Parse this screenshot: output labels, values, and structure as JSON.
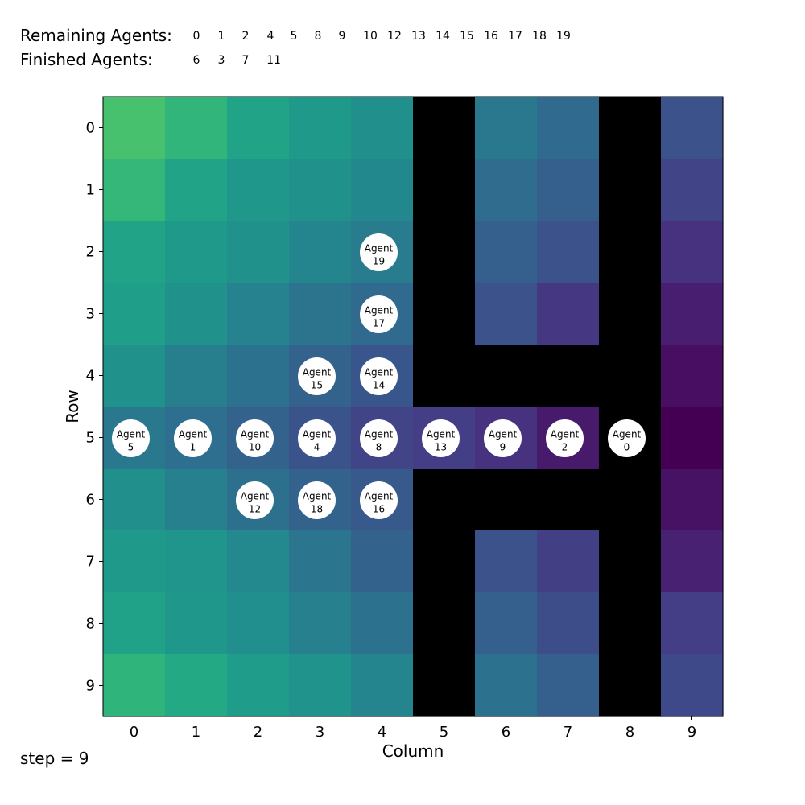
{
  "header": {
    "remaining_label": "Remaining Agents:",
    "finished_label": "Finished Agents:",
    "remaining": [
      "0",
      "1",
      "2",
      "4",
      "5",
      "8",
      "9",
      "10",
      "12",
      "13",
      "14",
      "15",
      "16",
      "17",
      "18",
      "19"
    ],
    "finished": [
      "6",
      "3",
      "7",
      "11"
    ]
  },
  "axes": {
    "xlabel": "Column",
    "ylabel": "Row",
    "xticks": [
      "0",
      "1",
      "2",
      "3",
      "4",
      "5",
      "6",
      "7",
      "8",
      "9"
    ],
    "yticks": [
      "0",
      "1",
      "2",
      "3",
      "4",
      "5",
      "6",
      "7",
      "8",
      "9"
    ]
  },
  "grid": {
    "rows": 10,
    "cols": 10,
    "wall_color": "#000000",
    "colormap": "viridis",
    "wall_cells": [
      [
        0,
        5
      ],
      [
        1,
        5
      ],
      [
        2,
        5
      ],
      [
        3,
        5
      ],
      [
        4,
        5
      ],
      [
        6,
        5
      ],
      [
        7,
        5
      ],
      [
        8,
        5
      ],
      [
        9,
        5
      ],
      [
        0,
        8
      ],
      [
        1,
        8
      ],
      [
        2,
        8
      ],
      [
        3,
        8
      ],
      [
        4,
        8
      ],
      [
        6,
        8
      ],
      [
        7,
        8
      ],
      [
        8,
        8
      ],
      [
        9,
        8
      ],
      [
        4,
        6
      ],
      [
        4,
        7
      ],
      [
        6,
        6
      ],
      [
        6,
        7
      ]
    ],
    "cell_colors": [
      [
        "#48c16e",
        "#31b57b",
        "#20a386",
        "#1f998a",
        "#21908d",
        null,
        "#2a788e",
        "#306a8e",
        null,
        "#3b528b"
      ],
      [
        "#35b779",
        "#20a386",
        "#1f978b",
        "#21918c",
        "#23888e",
        null,
        "#2f6c8e",
        "#355f8d",
        null,
        "#414487"
      ],
      [
        "#20a386",
        "#1f998a",
        "#21918c",
        "#25858e",
        "#297b8e",
        null,
        "#355f8d",
        "#3b528b",
        null,
        "#46327e"
      ],
      [
        "#1f9e89",
        "#21918c",
        "#26828e",
        "#2c738e",
        "#306a8e",
        null,
        "#3b528b",
        "#453781",
        null,
        "#481f70"
      ],
      [
        "#21918c",
        "#277f8e",
        "#2c728e",
        "#33638d",
        "#39568c",
        null,
        null,
        null,
        null,
        "#470e61"
      ],
      [
        "#2a788e",
        "#2e6e8e",
        "#33638d",
        "#3a538b",
        "#414487",
        "#433e85",
        "#46327e",
        "#481a6c",
        null,
        "#440154"
      ],
      [
        "#21908d",
        "#27808e",
        "#2d708e",
        "#33638d",
        "#38598c",
        null,
        null,
        null,
        null,
        "#471164"
      ],
      [
        "#1f9a8a",
        "#1f958b",
        "#23898e",
        "#2b758e",
        "#33638d",
        null,
        "#3b528b",
        "#423f85",
        null,
        "#482173"
      ],
      [
        "#1fa287",
        "#1f988b",
        "#218f8d",
        "#27808e",
        "#2c728e",
        null,
        "#355f8d",
        "#3d4d8a",
        null,
        "#433e85"
      ],
      [
        "#2fb47c",
        "#23a983",
        "#1f9d8a",
        "#20938c",
        "#25858e",
        null,
        "#2c728e",
        "#355f8d",
        null,
        "#3e4989"
      ]
    ]
  },
  "agents": [
    {
      "id": "19",
      "label": "Agent",
      "row": 2,
      "col": 4
    },
    {
      "id": "17",
      "label": "Agent",
      "row": 3,
      "col": 4
    },
    {
      "id": "15",
      "label": "Agent",
      "row": 4,
      "col": 3
    },
    {
      "id": "14",
      "label": "Agent",
      "row": 4,
      "col": 4
    },
    {
      "id": "5",
      "label": "Agent",
      "row": 5,
      "col": 0
    },
    {
      "id": "1",
      "label": "Agent",
      "row": 5,
      "col": 1
    },
    {
      "id": "10",
      "label": "Agent",
      "row": 5,
      "col": 2
    },
    {
      "id": "4",
      "label": "Agent",
      "row": 5,
      "col": 3
    },
    {
      "id": "8",
      "label": "Agent",
      "row": 5,
      "col": 4
    },
    {
      "id": "13",
      "label": "Agent",
      "row": 5,
      "col": 5
    },
    {
      "id": "9",
      "label": "Agent",
      "row": 5,
      "col": 6
    },
    {
      "id": "2",
      "label": "Agent",
      "row": 5,
      "col": 7
    },
    {
      "id": "0",
      "label": "Agent",
      "row": 5,
      "col": 8
    },
    {
      "id": "12",
      "label": "Agent",
      "row": 6,
      "col": 2
    },
    {
      "id": "18",
      "label": "Agent",
      "row": 6,
      "col": 3
    },
    {
      "id": "16",
      "label": "Agent",
      "row": 6,
      "col": 4
    }
  ],
  "status": {
    "step_text": "step = 9"
  }
}
